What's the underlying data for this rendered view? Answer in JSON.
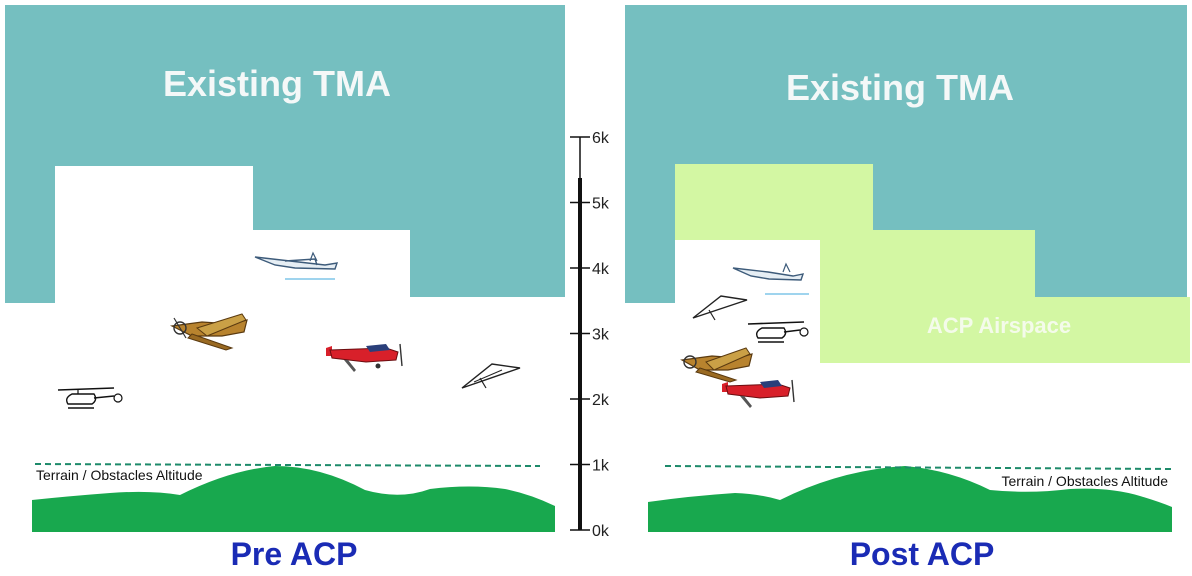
{
  "left_panel": {
    "tma_label": "Existing TMA",
    "terrain_label": "Terrain / Obstacles Altitude",
    "caption": "Pre ACP"
  },
  "right_panel": {
    "tma_label": "Existing TMA",
    "acp_label": "ACP Airspace",
    "terrain_label": "Terrain / Obstacles Altitude",
    "caption": "Post  ACP"
  },
  "altitude_scale": {
    "ticks": [
      "6k",
      "5k",
      "4k",
      "3k",
      "2k",
      "1k",
      "0k"
    ]
  },
  "colors": {
    "tma": "#75bfc0",
    "acp": "#d3f7a3",
    "terrain": "#18a84e",
    "dashed_line": "#1d8a6a",
    "caption": "#1a2bb5"
  },
  "aircraft_icons": [
    "glider-icon",
    "warbird-icon",
    "cessna-icon",
    "hang-glider-icon",
    "helicopter-icon"
  ]
}
